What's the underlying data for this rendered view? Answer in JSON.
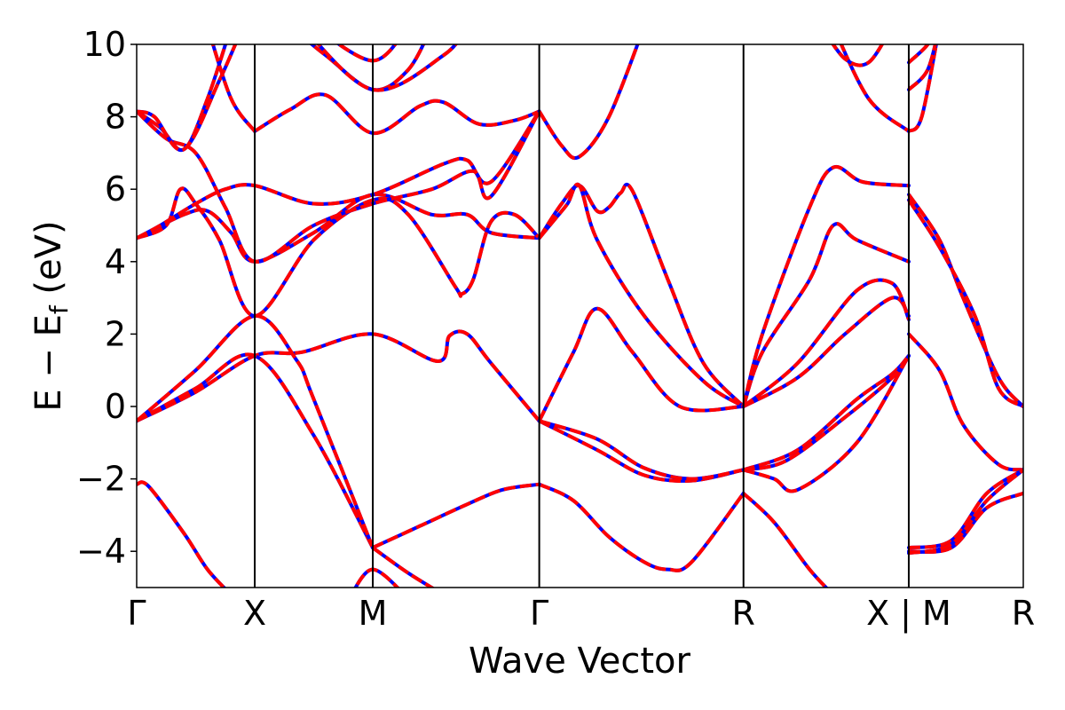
{
  "chart_data": {
    "type": "line",
    "xlabel": "Wave Vector",
    "ylabel_parts": [
      "E − E",
      "f",
      " (eV)"
    ],
    "ylim": [
      -5,
      10
    ],
    "yticks": [
      -4,
      -2,
      0,
      2,
      4,
      6,
      8,
      10
    ],
    "ytick_labels": [
      "−4",
      "−2",
      "0",
      "2",
      "4",
      "6",
      "8",
      "10"
    ],
    "xlim": [
      0,
      7.51
    ],
    "kpoints": [
      {
        "label": "Γ",
        "x": 0
      },
      {
        "label": "X",
        "x": 1.0
      },
      {
        "label": "M",
        "x": 2.0
      },
      {
        "label": "Γ",
        "x": 3.41
      },
      {
        "label": "R",
        "x": 5.14
      },
      {
        "label": "X | M",
        "x": 6.54
      },
      {
        "label": "R",
        "x": 7.51
      }
    ],
    "styles": {
      "reference": {
        "color": "#0000ff",
        "style": "solid"
      },
      "overlay": {
        "color": "#ff0000",
        "style": "dashed"
      }
    },
    "series": [
      {
        "points": [
          [
            0,
            -0.4
          ],
          [
            0.5,
            0.4
          ],
          [
            1.0,
            1.4
          ],
          [
            1.4,
            1.5
          ],
          [
            2.0,
            2.0
          ],
          [
            2.55,
            1.25
          ],
          [
            2.65,
            1.95
          ],
          [
            2.8,
            2.0
          ],
          [
            3.0,
            1.2
          ],
          [
            3.41,
            -0.4
          ]
        ]
      },
      {
        "points": [
          [
            0,
            -0.4
          ],
          [
            0.5,
            0.5
          ],
          [
            1.0,
            1.4
          ],
          [
            1.5,
            -0.8
          ],
          [
            2.0,
            -3.9
          ]
        ]
      },
      {
        "points": [
          [
            0,
            -0.4
          ],
          [
            0.5,
            1.0
          ],
          [
            1.0,
            2.5
          ],
          [
            1.35,
            1.3
          ],
          [
            1.5,
            0.2
          ],
          [
            2.0,
            -3.9
          ]
        ]
      },
      {
        "points": [
          [
            0,
            -2.15
          ],
          [
            0.1,
            -2.2
          ],
          [
            0.4,
            -3.5
          ],
          [
            0.6,
            -4.5
          ],
          [
            0.8,
            -5.2
          ]
        ]
      },
      {
        "points": [
          [
            0,
            4.65
          ],
          [
            0.4,
            5.3
          ],
          [
            0.6,
            5.4
          ],
          [
            0.8,
            4.8
          ],
          [
            1.0,
            4.0
          ],
          [
            1.5,
            4.8
          ],
          [
            2.0,
            5.85
          ],
          [
            2.5,
            5.3
          ],
          [
            2.8,
            5.3
          ],
          [
            3.0,
            4.8
          ],
          [
            3.41,
            4.65
          ]
        ]
      },
      {
        "points": [
          [
            0,
            4.65
          ],
          [
            0.25,
            5.0
          ],
          [
            0.37,
            6.0
          ],
          [
            0.5,
            5.6
          ],
          [
            0.7,
            4.6
          ],
          [
            1.0,
            2.5
          ],
          [
            1.5,
            4.6
          ],
          [
            2.0,
            5.7
          ],
          [
            2.3,
            5.3
          ],
          [
            2.7,
            3.3
          ],
          [
            2.75,
            3.1
          ],
          [
            2.85,
            3.5
          ],
          [
            3.0,
            5.1
          ],
          [
            3.2,
            5.3
          ],
          [
            3.41,
            4.65
          ]
        ]
      },
      {
        "points": [
          [
            0,
            4.65
          ],
          [
            0.2,
            5.0
          ],
          [
            0.5,
            5.6
          ],
          [
            0.75,
            6.0
          ],
          [
            1.0,
            6.1
          ],
          [
            1.5,
            5.6
          ],
          [
            2.0,
            5.85
          ],
          [
            2.6,
            6.7
          ],
          [
            2.8,
            6.8
          ],
          [
            3.0,
            6.2
          ],
          [
            3.41,
            8.15
          ]
        ]
      },
      {
        "points": [
          [
            0,
            8.15
          ],
          [
            0.25,
            7.4
          ],
          [
            0.5,
            7.0
          ],
          [
            0.75,
            5.5
          ],
          [
            1.0,
            4.0
          ],
          [
            1.5,
            5.0
          ],
          [
            2.0,
            5.6
          ],
          [
            2.5,
            6.0
          ],
          [
            2.85,
            6.5
          ],
          [
            3.0,
            5.8
          ],
          [
            3.41,
            8.15
          ]
        ]
      },
      {
        "points": [
          [
            0,
            8.15
          ],
          [
            0.2,
            7.7
          ],
          [
            0.4,
            7.1
          ],
          [
            0.6,
            8.5
          ],
          [
            0.8,
            10.5
          ]
        ]
      },
      {
        "points": [
          [
            0,
            8.15
          ],
          [
            0.15,
            8.0
          ],
          [
            0.4,
            7.1
          ],
          [
            0.7,
            9.0
          ],
          [
            0.9,
            10.5
          ]
        ]
      },
      {
        "points": [
          [
            1.0,
            7.6
          ],
          [
            1.3,
            8.2
          ],
          [
            1.6,
            8.6
          ],
          [
            2.0,
            7.55
          ],
          [
            2.4,
            8.3
          ],
          [
            2.6,
            8.4
          ],
          [
            2.9,
            7.8
          ],
          [
            3.2,
            7.9
          ],
          [
            3.41,
            8.15
          ]
        ]
      },
      {
        "points": [
          [
            1.0,
            7.6
          ],
          [
            0.8,
            8.5
          ],
          [
            0.6,
            10.5
          ]
        ]
      },
      {
        "points": [
          [
            1.3,
            10.5
          ],
          [
            1.6,
            9.7
          ],
          [
            2.0,
            8.75
          ],
          [
            2.3,
            9.3
          ],
          [
            2.5,
            10.5
          ]
        ]
      },
      {
        "points": [
          [
            1.5,
            10.5
          ],
          [
            2.0,
            9.55
          ],
          [
            2.3,
            10.5
          ]
        ]
      },
      {
        "points": [
          [
            1.4,
            10.5
          ],
          [
            2.0,
            8.75
          ],
          [
            2.6,
            9.7
          ],
          [
            2.8,
            10.5
          ]
        ]
      },
      {
        "points": [
          [
            3.41,
            8.15
          ],
          [
            3.6,
            7.2
          ],
          [
            3.75,
            6.9
          ],
          [
            4.0,
            8.0
          ],
          [
            4.3,
            10.5
          ]
        ]
      },
      {
        "points": [
          [
            3.41,
            4.65
          ],
          [
            3.6,
            5.6
          ],
          [
            3.75,
            6.1
          ],
          [
            3.9,
            5.4
          ],
          [
            4.0,
            5.5
          ],
          [
            4.1,
            5.9
          ],
          [
            4.2,
            5.95
          ],
          [
            4.5,
            3.5
          ],
          [
            4.8,
            1.2
          ],
          [
            5.14,
            0.0
          ]
        ]
      },
      {
        "points": [
          [
            3.41,
            4.65
          ],
          [
            3.55,
            5.2
          ],
          [
            3.65,
            5.6
          ],
          [
            3.75,
            6.1
          ],
          [
            3.9,
            4.6
          ],
          [
            4.3,
            2.5
          ],
          [
            4.8,
            0.7
          ],
          [
            5.14,
            0.0
          ]
        ]
      },
      {
        "points": [
          [
            3.41,
            -0.4
          ],
          [
            3.7,
            1.5
          ],
          [
            3.9,
            2.7
          ],
          [
            4.2,
            1.5
          ],
          [
            4.6,
            0.0
          ],
          [
            5.14,
            0.0
          ]
        ]
      },
      {
        "points": [
          [
            3.41,
            -0.4
          ],
          [
            3.9,
            -1.2
          ],
          [
            4.3,
            -1.9
          ],
          [
            4.7,
            -2.05
          ],
          [
            5.14,
            -1.75
          ]
        ]
      },
      {
        "points": [
          [
            3.41,
            -0.4
          ],
          [
            3.9,
            -0.9
          ],
          [
            4.3,
            -1.7
          ],
          [
            4.7,
            -2.0
          ],
          [
            5.14,
            -1.75
          ]
        ]
      },
      {
        "points": [
          [
            3.41,
            -2.15
          ],
          [
            3.7,
            -2.6
          ],
          [
            4.0,
            -3.6
          ],
          [
            4.3,
            -4.3
          ],
          [
            4.5,
            -4.5
          ],
          [
            4.7,
            -4.3
          ],
          [
            5.14,
            -2.4
          ]
        ]
      },
      {
        "points": [
          [
            2.0,
            -3.9
          ],
          [
            2.4,
            -3.3
          ],
          [
            2.8,
            -2.7
          ],
          [
            3.1,
            -2.3
          ],
          [
            3.41,
            -2.15
          ]
        ]
      },
      {
        "points": [
          [
            2.0,
            -3.9
          ],
          [
            2.3,
            -4.6
          ],
          [
            2.6,
            -5.2
          ]
        ]
      },
      {
        "points": [
          [
            1.8,
            -5.3
          ],
          [
            2.0,
            -4.5
          ],
          [
            2.3,
            -5.3
          ]
        ]
      },
      {
        "points": [
          [
            5.14,
            -2.4
          ],
          [
            5.4,
            -3.2
          ],
          [
            5.7,
            -4.5
          ],
          [
            5.9,
            -5.2
          ]
        ]
      },
      {
        "points": [
          [
            5.14,
            0.0
          ],
          [
            5.6,
            0.8
          ],
          [
            6.0,
            2.0
          ],
          [
            6.4,
            3.0
          ],
          [
            6.54,
            2.5
          ]
        ]
      },
      {
        "points": [
          [
            5.14,
            0.0
          ],
          [
            5.3,
            1.5
          ],
          [
            5.7,
            3.5
          ],
          [
            5.9,
            5.0
          ],
          [
            6.1,
            4.6
          ],
          [
            6.54,
            4.0
          ]
        ]
      },
      {
        "points": [
          [
            5.14,
            0.0
          ],
          [
            5.3,
            2.0
          ],
          [
            5.7,
            5.5
          ],
          [
            5.9,
            6.6
          ],
          [
            6.15,
            6.2
          ],
          [
            6.54,
            6.1
          ]
        ]
      },
      {
        "points": [
          [
            5.14,
            0.0
          ],
          [
            5.6,
            1.2
          ],
          [
            6.1,
            3.2
          ],
          [
            6.4,
            3.4
          ],
          [
            6.54,
            2.4
          ]
        ]
      },
      {
        "points": [
          [
            5.14,
            -1.75
          ],
          [
            5.6,
            -1.2
          ],
          [
            6.1,
            0.2
          ],
          [
            6.4,
            0.9
          ],
          [
            6.54,
            1.4
          ]
        ]
      },
      {
        "points": [
          [
            5.14,
            -1.75
          ],
          [
            5.4,
            -2.0
          ],
          [
            5.6,
            -2.3
          ],
          [
            6.1,
            -1.0
          ],
          [
            6.54,
            1.4
          ]
        ]
      },
      {
        "points": [
          [
            5.14,
            -1.75
          ],
          [
            5.5,
            -1.5
          ],
          [
            6.0,
            -0.3
          ],
          [
            6.4,
            0.8
          ],
          [
            6.54,
            1.4
          ]
        ]
      },
      {
        "points": [
          [
            5.9,
            10.5
          ],
          [
            6.2,
            8.5
          ],
          [
            6.54,
            7.6
          ]
        ]
      },
      {
        "points": [
          [
            5.8,
            10.5
          ],
          [
            6.0,
            9.6
          ],
          [
            6.2,
            9.5
          ],
          [
            6.4,
            10.5
          ]
        ]
      },
      {
        "points": [
          [
            6.54,
            7.6
          ],
          [
            6.65,
            8.0
          ],
          [
            6.8,
            10.5
          ]
        ]
      },
      {
        "points": [
          [
            6.54,
            8.75
          ],
          [
            6.7,
            9.3
          ],
          [
            6.8,
            10.5
          ]
        ]
      },
      {
        "points": [
          [
            6.54,
            9.5
          ],
          [
            6.7,
            10.0
          ],
          [
            6.75,
            10.5
          ]
        ]
      },
      {
        "points": [
          [
            6.54,
            5.85
          ],
          [
            6.8,
            4.6
          ],
          [
            7.0,
            3.0
          ],
          [
            7.3,
            0.8
          ],
          [
            7.51,
            0.0
          ]
        ]
      },
      {
        "points": [
          [
            6.54,
            5.7
          ],
          [
            6.8,
            4.4
          ],
          [
            7.1,
            2.5
          ],
          [
            7.3,
            0.5
          ],
          [
            7.51,
            0.0
          ]
        ]
      },
      {
        "points": [
          [
            6.54,
            2.0
          ],
          [
            6.8,
            1.0
          ],
          [
            7.0,
            -0.5
          ],
          [
            7.3,
            -1.6
          ],
          [
            7.51,
            -1.75
          ]
        ]
      },
      {
        "points": [
          [
            6.54,
            -3.9
          ],
          [
            6.9,
            -3.7
          ],
          [
            7.2,
            -2.4
          ],
          [
            7.51,
            -1.75
          ]
        ]
      },
      {
        "points": [
          [
            6.54,
            -4.0
          ],
          [
            6.9,
            -3.9
          ],
          [
            7.2,
            -2.8
          ],
          [
            7.51,
            -2.4
          ]
        ]
      },
      {
        "points": [
          [
            6.54,
            -4.05
          ],
          [
            6.9,
            -3.8
          ],
          [
            7.2,
            -2.6
          ],
          [
            7.51,
            -1.75
          ]
        ]
      }
    ]
  }
}
